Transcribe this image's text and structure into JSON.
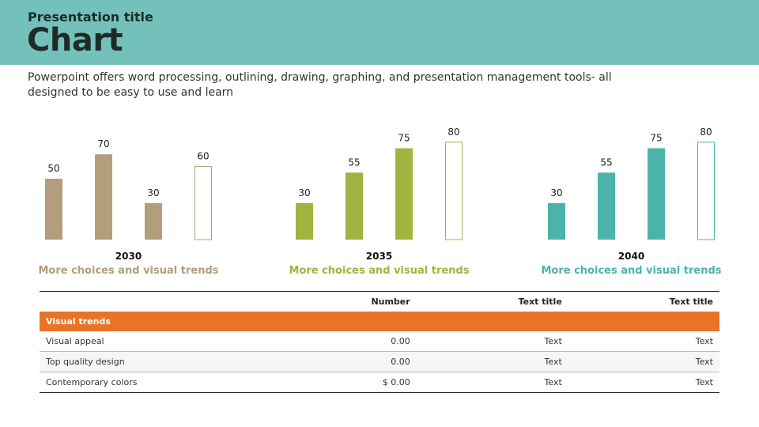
{
  "header": {
    "pretitle": "Presentation title",
    "title": "Chart",
    "description": "Powerpoint offers  word processing, outlining, drawing, graphing, and presentation management tools- all designed to be easy to use and learn",
    "bg_color": "#73c1ba"
  },
  "chart_data": [
    {
      "type": "bar",
      "title": "2030",
      "subtitle": "More choices and visual trends",
      "values": [
        50,
        70,
        30,
        60
      ],
      "styles": [
        "filled",
        "filled",
        "filled",
        "outline"
      ],
      "color": "#b29e7a",
      "ylim": [
        0,
        100
      ]
    },
    {
      "type": "bar",
      "title": "2035",
      "subtitle": "More choices and visual trends",
      "values": [
        30,
        55,
        75,
        80
      ],
      "styles": [
        "filled",
        "filled",
        "filled",
        "outline"
      ],
      "color": "#a2b33f",
      "ylim": [
        0,
        100
      ]
    },
    {
      "type": "bar",
      "title": "2040",
      "subtitle": "More choices and visual trends",
      "values": [
        30,
        55,
        75,
        80
      ],
      "styles": [
        "filled",
        "filled",
        "filled",
        "outline"
      ],
      "color": "#4cb3ab",
      "ylim": [
        0,
        100
      ]
    }
  ],
  "table": {
    "columns": [
      "",
      "Number",
      "Text title",
      "Text title"
    ],
    "group_label": "Visual trends",
    "group_color": "#e87527",
    "rows": [
      [
        "Visual appeal",
        "0.00",
        "Text",
        "Text"
      ],
      [
        "Top quality design",
        "0.00",
        "Text",
        "Text"
      ],
      [
        "Contemporary colors",
        "$ 0.00",
        "Text",
        "Text"
      ]
    ]
  }
}
